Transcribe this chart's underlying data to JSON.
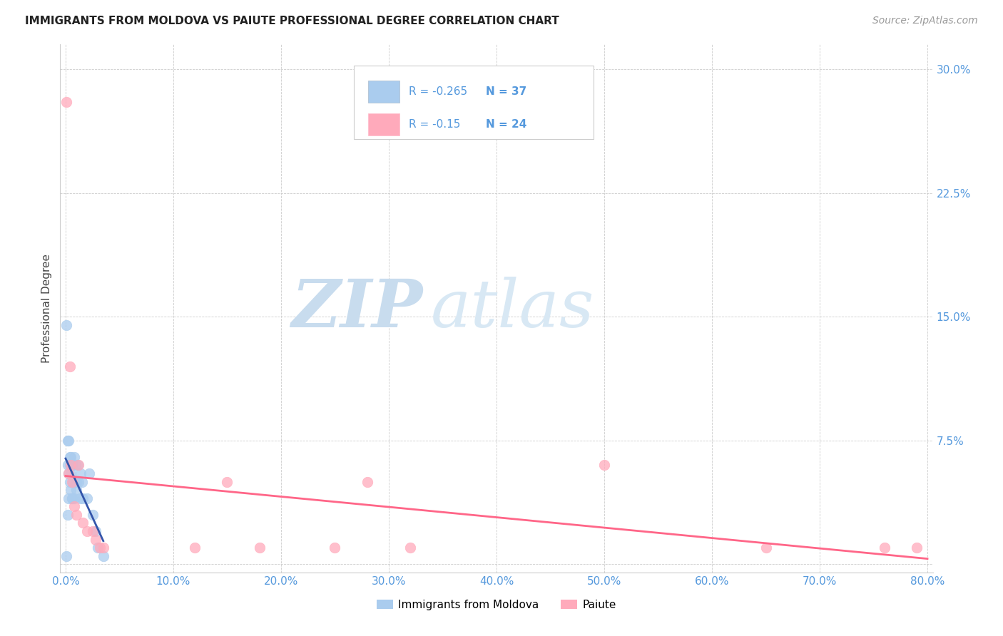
{
  "title": "IMMIGRANTS FROM MOLDOVA VS PAIUTE PROFESSIONAL DEGREE CORRELATION CHART",
  "source": "Source: ZipAtlas.com",
  "ylabel_label": "Professional Degree",
  "legend_label1": "Immigrants from Moldova",
  "legend_label2": "Paiute",
  "R1": -0.265,
  "N1": 37,
  "R2": -0.15,
  "N2": 24,
  "color_blue": "#AACCEE",
  "color_pink": "#FFAABB",
  "color_blue_line": "#3355AA",
  "color_pink_line": "#FF6688",
  "xlim": [
    -0.005,
    0.805
  ],
  "ylim": [
    -0.005,
    0.315
  ],
  "xticks": [
    0.0,
    0.1,
    0.2,
    0.3,
    0.4,
    0.5,
    0.6,
    0.7,
    0.8
  ],
  "yticks": [
    0.0,
    0.075,
    0.15,
    0.225,
    0.3
  ],
  "xtick_labels": [
    "0.0%",
    "10.0%",
    "20.0%",
    "30.0%",
    "40.0%",
    "50.0%",
    "60.0%",
    "70.0%",
    "80.0%"
  ],
  "ytick_labels": [
    "",
    "7.5%",
    "15.0%",
    "22.5%",
    "30.0%"
  ],
  "blue_x": [
    0.001,
    0.002,
    0.002,
    0.003,
    0.003,
    0.004,
    0.004,
    0.005,
    0.005,
    0.005,
    0.006,
    0.006,
    0.007,
    0.007,
    0.008,
    0.009,
    0.009,
    0.01,
    0.011,
    0.012,
    0.013,
    0.014,
    0.015,
    0.016,
    0.02,
    0.022,
    0.025,
    0.028,
    0.03,
    0.035,
    0.001,
    0.002,
    0.003,
    0.006,
    0.008,
    0.01,
    0.004
  ],
  "blue_y": [
    0.005,
    0.03,
    0.06,
    0.04,
    0.055,
    0.05,
    0.06,
    0.045,
    0.055,
    0.065,
    0.04,
    0.06,
    0.05,
    0.06,
    0.065,
    0.05,
    0.06,
    0.045,
    0.06,
    0.05,
    0.04,
    0.055,
    0.05,
    0.04,
    0.04,
    0.055,
    0.03,
    0.02,
    0.01,
    0.005,
    0.145,
    0.075,
    0.075,
    0.04,
    0.04,
    0.05,
    0.065
  ],
  "pink_x": [
    0.001,
    0.003,
    0.004,
    0.005,
    0.006,
    0.008,
    0.01,
    0.012,
    0.016,
    0.02,
    0.025,
    0.028,
    0.032,
    0.035,
    0.12,
    0.15,
    0.18,
    0.25,
    0.28,
    0.32,
    0.5,
    0.65,
    0.76,
    0.79
  ],
  "pink_y": [
    0.28,
    0.055,
    0.12,
    0.06,
    0.05,
    0.035,
    0.03,
    0.06,
    0.025,
    0.02,
    0.02,
    0.015,
    0.01,
    0.01,
    0.01,
    0.05,
    0.01,
    0.01,
    0.05,
    0.01,
    0.06,
    0.01,
    0.01,
    0.01
  ],
  "watermark_zip": "ZIP",
  "watermark_atlas": "atlas",
  "background_color": "#FFFFFF",
  "grid_color": "#CCCCCC",
  "tick_color": "#5599DD",
  "legend_box_color": "#DDDDDD"
}
